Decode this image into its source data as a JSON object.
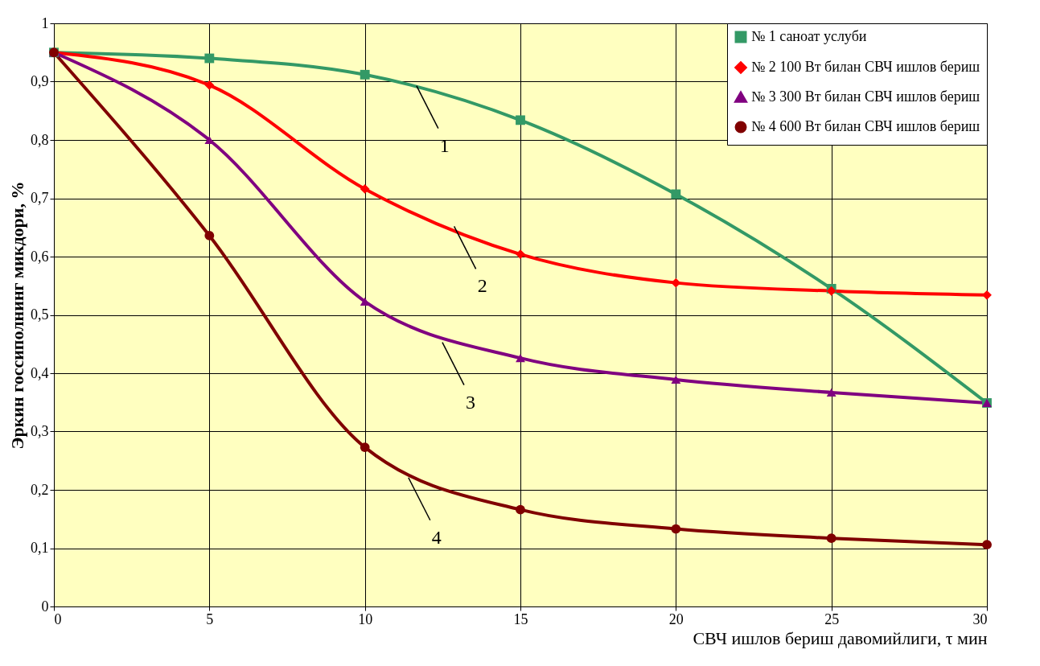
{
  "chart_data": {
    "type": "line",
    "xlabel": "СВЧ ишлов бериш давомийлиги, τ мин",
    "ylabel": "Эркин госсиполнинг микдори, %",
    "x": [
      0,
      5,
      10,
      15,
      20,
      25,
      30
    ],
    "series": [
      {
        "name": "№ 1 саноат услуби",
        "color": "#339966",
        "marker": "square",
        "values": [
          0.95,
          0.94,
          0.912,
          0.834,
          0.707,
          0.545,
          0.349
        ]
      },
      {
        "name": "№ 2 100 Вт билан СВЧ ишлов бериш",
        "color": "#ff0000",
        "marker": "diamond",
        "values": [
          0.95,
          0.894,
          0.716,
          0.604,
          0.555,
          0.541,
          0.534
        ]
      },
      {
        "name": "№ 3 300 Вт билан СВЧ ишлов бериш",
        "color": "#800080",
        "marker": "triangle",
        "values": [
          0.95,
          0.8,
          0.523,
          0.426,
          0.389,
          0.367,
          0.349
        ]
      },
      {
        "name": "№ 4 600 Вт билан СВЧ ишлов бериш",
        "color": "#800000",
        "marker": "circle",
        "values": [
          0.95,
          0.636,
          0.273,
          0.166,
          0.133,
          0.117,
          0.106
        ]
      }
    ],
    "xlim": [
      0,
      30
    ],
    "xticks": [
      0,
      5,
      10,
      15,
      20,
      25,
      30
    ],
    "ylim": [
      0,
      1
    ],
    "yticks": [
      0,
      {
        "value": 0.1,
        "label": "0,1"
      },
      {
        "value": 0.2,
        "label": "0,2"
      },
      {
        "value": 0.3,
        "label": "0,3"
      },
      {
        "value": 0.4,
        "label": "0,4"
      },
      {
        "value": 0.5,
        "label": "0,5"
      },
      {
        "value": 0.6,
        "label": "0,6"
      },
      {
        "value": 0.7,
        "label": "0,7"
      },
      {
        "value": 0.8,
        "label": "0,8"
      },
      {
        "value": 0.9,
        "label": "0,9"
      },
      1
    ],
    "annotations": [
      {
        "text": "1",
        "x": 11.66,
        "y": 0.893
      },
      {
        "text": "2",
        "x": 12.87,
        "y": 0.652
      },
      {
        "text": "3",
        "x": 12.49,
        "y": 0.453
      },
      {
        "text": "4",
        "x": 11.4,
        "y": 0.221
      }
    ],
    "grid": true,
    "legend": "top right",
    "line_style": "solid"
  }
}
